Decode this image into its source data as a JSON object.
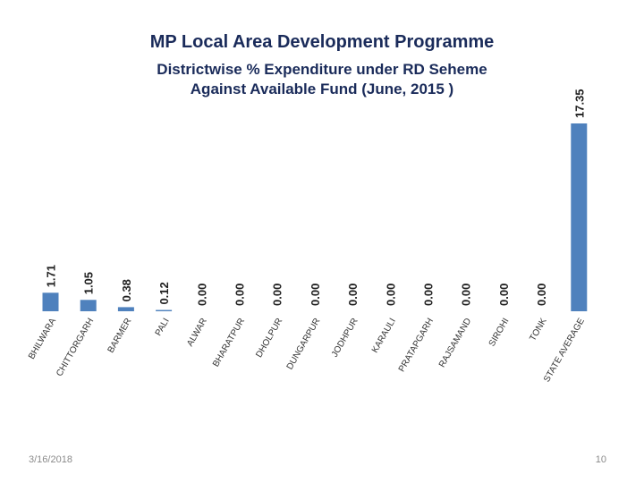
{
  "slide": {
    "title": "MP Local Area Development Programme",
    "subtitle_line1": "Districtwise % Expenditure  under RD Seheme",
    "subtitle_line2": "Against Available Fund (June, 2015 )",
    "date": "3/16/2018",
    "page_number": "10"
  },
  "chart_data": {
    "type": "bar",
    "title": "MP Local Area Development Programme",
    "subtitle": "Districtwise % Expenditure  under RD Seheme Against Available Fund (June, 2015 )",
    "xlabel": "",
    "ylabel": "",
    "categories": [
      "BHILWARA",
      "CHITTORGARH",
      "BARMER",
      "PALI",
      "ALWAR",
      "BHARATPUR",
      "DHOLPUR",
      "DUNGARPUR",
      "JODHPUR",
      "KARAULI",
      "PRATAPGARH",
      "RAJSAMAND",
      "SIROHI",
      "TONK",
      "STATE AVERAGE"
    ],
    "values": [
      1.71,
      1.05,
      0.38,
      0.12,
      0.0,
      0.0,
      0.0,
      0.0,
      0.0,
      0.0,
      0.0,
      0.0,
      0.0,
      0.0,
      17.35
    ],
    "value_labels": [
      "1.71",
      "1.05",
      "0.38",
      "0.12",
      "0.00",
      "0.00",
      "0.00",
      "0.00",
      "0.00",
      "0.00",
      "0.00",
      "0.00",
      "0.00",
      "0.00",
      "17.35"
    ],
    "ylim": [
      0,
      17.35
    ],
    "grid": false,
    "legend": "none",
    "bar_color": "#4f81bd"
  }
}
